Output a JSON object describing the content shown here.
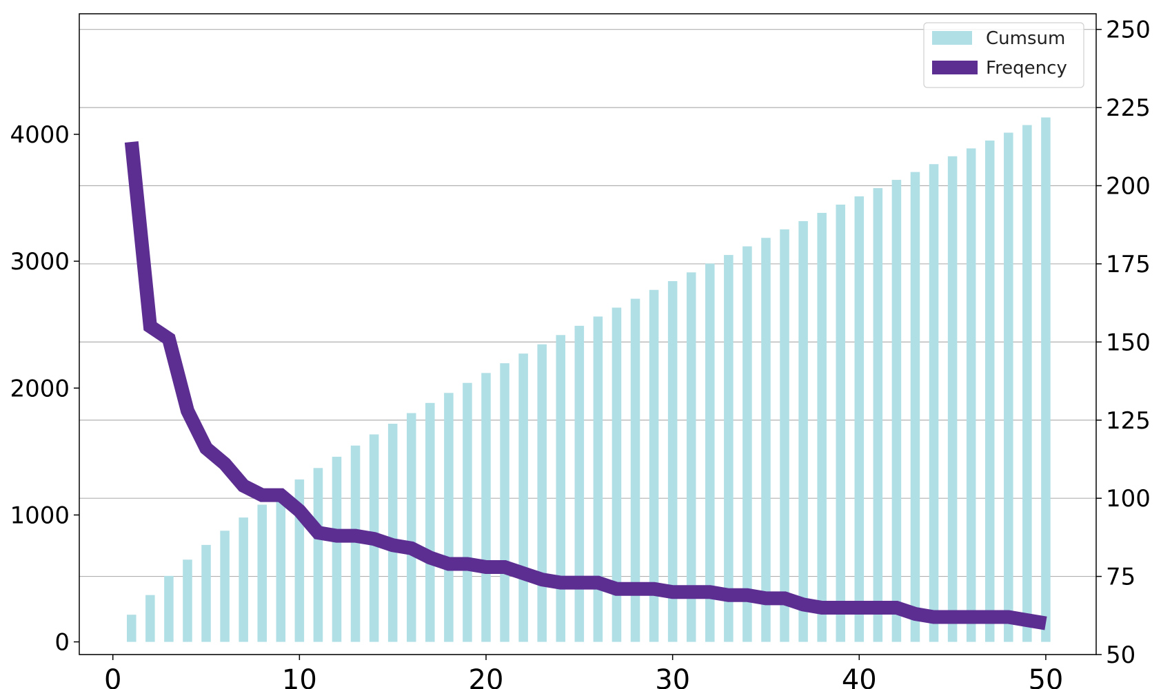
{
  "chart_data": {
    "type": "bar+line",
    "x": [
      1,
      2,
      3,
      4,
      5,
      6,
      7,
      8,
      9,
      10,
      11,
      12,
      13,
      14,
      15,
      16,
      17,
      18,
      19,
      20,
      21,
      22,
      23,
      24,
      25,
      26,
      27,
      28,
      29,
      30,
      31,
      32,
      33,
      34,
      35,
      36,
      37,
      38,
      39,
      40,
      41,
      42,
      43,
      44,
      45,
      46,
      47,
      48,
      49,
      50
    ],
    "series": [
      {
        "name": "Cumsum",
        "kind": "bar",
        "axis": "left",
        "color": "#b0dfe5",
        "values": [
          214,
          369,
          520,
          648,
          764,
          876,
          980,
          1081,
          1183,
          1280,
          1370,
          1459,
          1547,
          1635,
          1719,
          1803,
          1883,
          1962,
          2041,
          2119,
          2196,
          2272,
          2345,
          2418,
          2491,
          2564,
          2634,
          2704,
          2774,
          2843,
          2912,
          2981,
          3049,
          3117,
          3184,
          3251,
          3316,
          3381,
          3446,
          3511,
          3576,
          3641,
          3703,
          3765,
          3827,
          3889,
          3951,
          4013,
          4073,
          4133
        ]
      },
      {
        "name": "Freqency",
        "kind": "line",
        "axis": "right",
        "color": "#5c2e91",
        "values": [
          214,
          155,
          151,
          128,
          116,
          111,
          104,
          101,
          101,
          96,
          89,
          88,
          88,
          87,
          85,
          84,
          81,
          79,
          79,
          78,
          78,
          76,
          74,
          73,
          73,
          73,
          71,
          71,
          71,
          70,
          70,
          70,
          69,
          69,
          68,
          68,
          66,
          65,
          65,
          65,
          65,
          65,
          63,
          62,
          62,
          62,
          62,
          62,
          61,
          60
        ]
      }
    ],
    "xlim": [
      -1.8,
      52.7
    ],
    "xticks": [
      "0",
      "10",
      "20",
      "30",
      "40",
      "50"
    ],
    "ylim_left": [
      -100,
      4950
    ],
    "yticks_left": [
      "0",
      "1000",
      "2000",
      "3000",
      "4000"
    ],
    "ylim_right": [
      50,
      255
    ],
    "yticks_right": [
      "50",
      "75",
      "100",
      "125",
      "150",
      "175",
      "200",
      "225",
      "250"
    ],
    "grid": "horizontal (right axis)",
    "legend": {
      "placement": "top-right",
      "entries": [
        "Cumsum",
        "Freqency"
      ]
    }
  }
}
